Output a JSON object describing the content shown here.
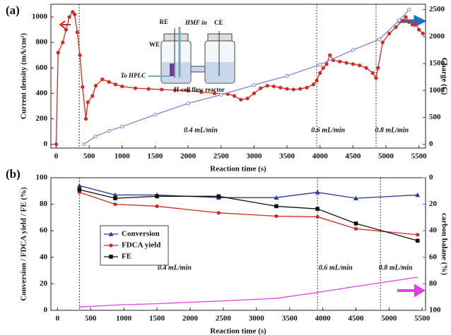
{
  "chart_data": [
    {
      "type": "line",
      "panel_label": "(a)",
      "x_label": "Reaction time (s)",
      "y_label": "Current density (mA/cm²)",
      "y2_label": "Charge (C)",
      "xlim": [
        -80,
        5600
      ],
      "xticks": [
        0,
        500,
        1000,
        1500,
        2000,
        2500,
        3000,
        3500,
        4000,
        4500,
        5000,
        5500
      ],
      "ylim": [
        -30,
        1100
      ],
      "yticks": [
        0,
        200,
        400,
        600,
        800,
        1000
      ],
      "y2lim": [
        -70,
        2600
      ],
      "y2ticks": [
        0,
        500,
        1000,
        1500,
        2000,
        2500
      ],
      "vlines": [
        350,
        3950,
        4850
      ],
      "annotations": [
        "0.4 mL/min",
        "0.6 mL/min",
        "0.8 mL/min"
      ],
      "inset_labels": [
        "RE",
        "HMF in",
        "CE",
        "WE",
        "To HPLC",
        "H-cell flow reactor"
      ],
      "series": [
        {
          "color": "#d42a20",
          "marker": "circle",
          "axis": "y",
          "x": [
            0,
            30,
            100,
            150,
            200,
            250,
            280,
            320,
            360,
            400,
            450,
            480,
            550,
            600,
            700,
            800,
            900,
            1000,
            1200,
            1400,
            1600,
            1800,
            2000,
            2200,
            2400,
            2600,
            2700,
            2800,
            2900,
            3000,
            3100,
            3200,
            3300,
            3400,
            3500,
            3600,
            3700,
            3800,
            3900,
            3950,
            4000,
            4050,
            4100,
            4150,
            4200,
            4300,
            4400,
            4500,
            4600,
            4700,
            4800,
            4850,
            4880,
            4950,
            5050,
            5150,
            5250,
            5300,
            5350,
            5400,
            5450,
            5500,
            5560
          ],
          "values": [
            0,
            720,
            800,
            900,
            1000,
            1040,
            1020,
            880,
            700,
            450,
            200,
            330,
            380,
            460,
            510,
            490,
            470,
            455,
            440,
            435,
            430,
            425,
            420,
            410,
            400,
            395,
            380,
            350,
            360,
            400,
            440,
            460,
            455,
            445,
            435,
            430,
            435,
            445,
            470,
            500,
            560,
            600,
            630,
            700,
            660,
            650,
            640,
            630,
            620,
            600,
            560,
            520,
            600,
            800,
            870,
            920,
            970,
            1000,
            960,
            940,
            950,
            900,
            870
          ]
        },
        {
          "color": "#8080e0",
          "marker": "circle-open",
          "axis": "y2",
          "x": [
            420,
            600,
            800,
            1000,
            1500,
            2000,
            2500,
            3000,
            3500,
            4000,
            4500,
            4900,
            5200,
            5350
          ],
          "values": [
            0,
            150,
            250,
            330,
            550,
            760,
            920,
            1100,
            1270,
            1480,
            1750,
            1950,
            2300,
            2500
          ]
        }
      ]
    },
    {
      "type": "line",
      "panel_label": "(b)",
      "x_label": "Reaction time (s)",
      "y_label": "Conversion / FDCA yield / FE (%)",
      "y2_label": "carbon balane (%)",
      "xlim": [
        -100,
        5550
      ],
      "xticks": [
        0,
        500,
        1000,
        1500,
        2000,
        2500,
        3000,
        3500,
        4000,
        4500,
        5000,
        5500
      ],
      "ylim": [
        0,
        100
      ],
      "yticks": [
        0,
        20,
        40,
        60,
        80,
        100
      ],
      "y2lim": [
        100,
        0
      ],
      "y2ticks": [
        0,
        20,
        40,
        60,
        80,
        100
      ],
      "vlines": [
        330,
        3920,
        4870
      ],
      "annotations": [
        "0.4 mL/min",
        "0.6 mL/min",
        "0.8 mL/min"
      ],
      "series": [
        {
          "name": "Conversion",
          "color": "#2a3a9c",
          "marker": "triangle",
          "axis": "y",
          "x": [
            330,
            870,
            1500,
            2430,
            3300,
            3920,
            4500,
            5430
          ],
          "values": [
            94,
            87,
            87,
            85,
            85,
            89,
            84.5,
            87
          ]
        },
        {
          "name": "FDCA yield",
          "color": "#d42a20",
          "marker": "circle",
          "axis": "y",
          "x": [
            330,
            870,
            1500,
            2430,
            3300,
            3920,
            4500,
            5430
          ],
          "values": [
            89,
            80,
            78.5,
            73.5,
            71,
            70.5,
            61.5,
            57
          ]
        },
        {
          "name": "FE",
          "color": "#111111",
          "marker": "square",
          "axis": "y",
          "x": [
            330,
            870,
            1500,
            2430,
            3300,
            3920,
            4500,
            5430
          ],
          "values": [
            91,
            84.5,
            86,
            86,
            78.5,
            76.5,
            65.5,
            52.5
          ]
        },
        {
          "color": "#e040e0",
          "marker": "none",
          "axis": "y2",
          "x": [
            330,
            870,
            1500,
            2430,
            3300,
            3920,
            4500,
            5430
          ],
          "values": [
            97.5,
            96,
            95,
            93,
            91,
            86.5,
            82,
            75
          ]
        }
      ]
    }
  ]
}
